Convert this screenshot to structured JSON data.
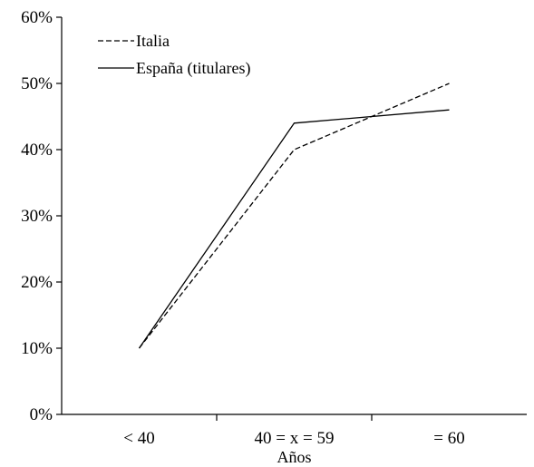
{
  "chart_data": {
    "type": "line",
    "categories": [
      "< 40",
      "40 = x = 59",
      "= 60"
    ],
    "xlabel": "Años",
    "ylabel": "",
    "ylim": [
      0,
      0.6
    ],
    "yticks": [
      {
        "value": 0,
        "label": "0%"
      },
      {
        "value": 0.1,
        "label": "10%"
      },
      {
        "value": 0.2,
        "label": "20%"
      },
      {
        "value": 0.3,
        "label": "30%"
      },
      {
        "value": 0.4,
        "label": "40%"
      },
      {
        "value": 0.5,
        "label": "50%"
      },
      {
        "value": 0.6,
        "label": "60%"
      }
    ],
    "series": [
      {
        "name": "Italia",
        "values": [
          0.1,
          0.4,
          0.5
        ],
        "color": "#000000",
        "line_style": "dashed"
      },
      {
        "name": "España (titulares)",
        "values": [
          0.1,
          0.44,
          0.46
        ],
        "color": "#000000",
        "line_style": "solid"
      }
    ],
    "legend_position": "top-left",
    "grid": false
  }
}
